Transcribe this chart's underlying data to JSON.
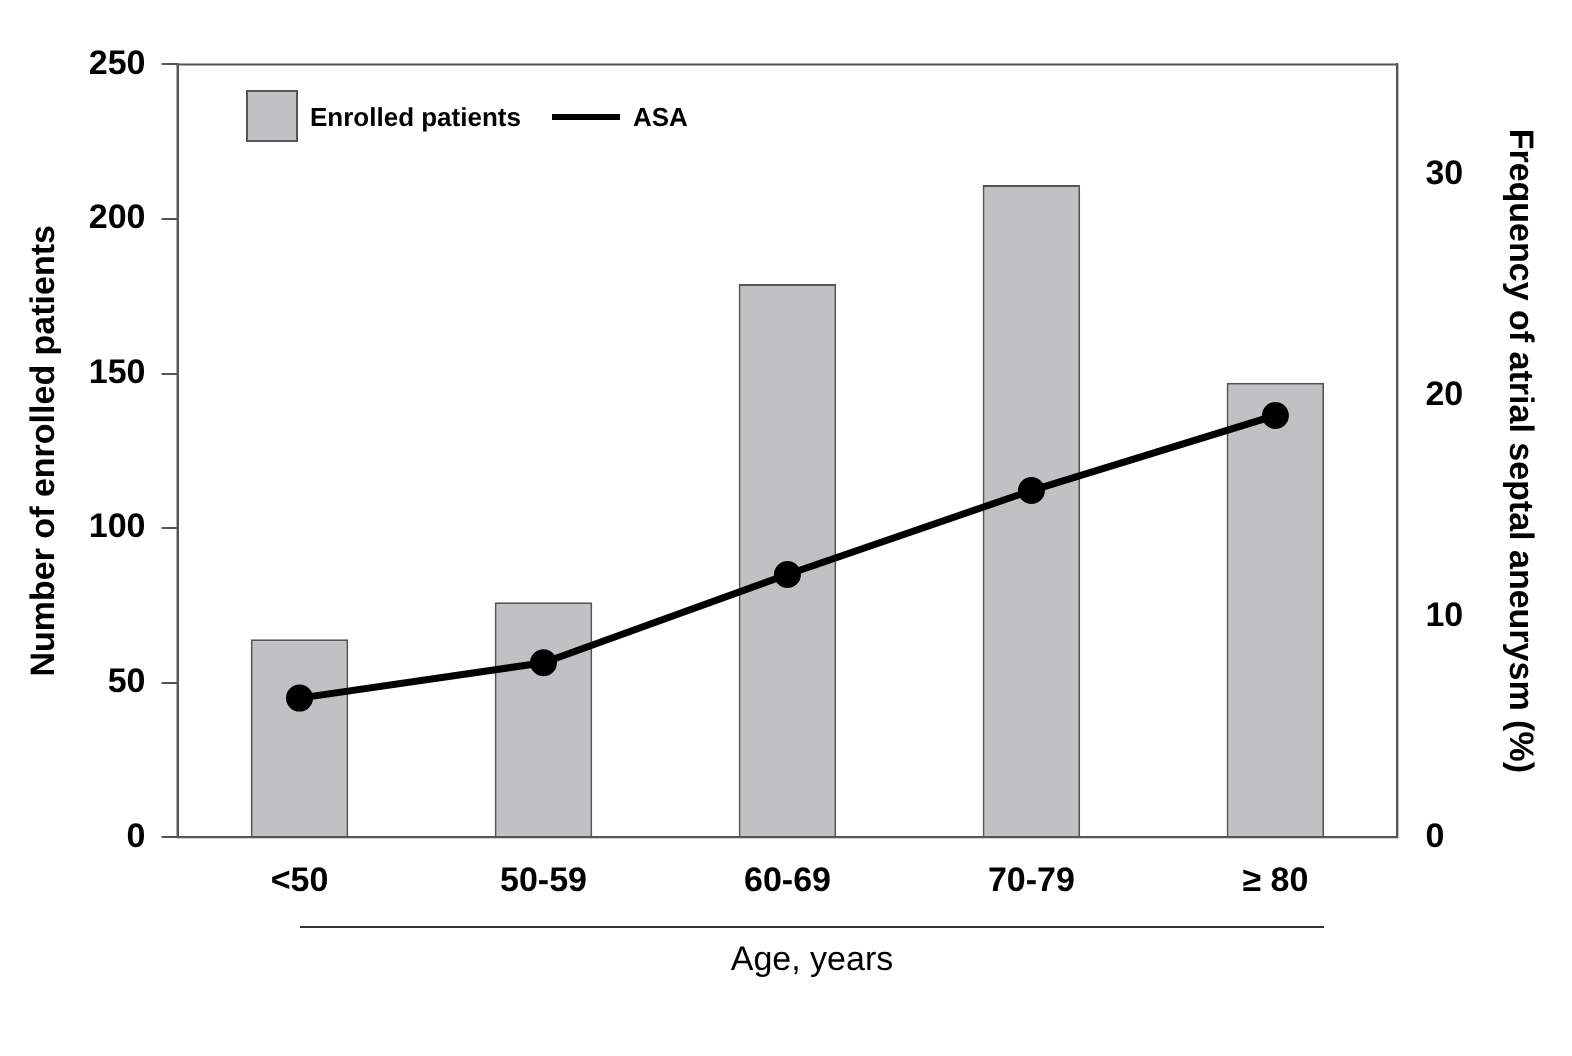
{
  "chart_data": {
    "type": "bar",
    "xlabel": "Age, years",
    "ylabel": "Number of enrolled patients",
    "y2label": "Frequency of atrial septal aneurysm (%)",
    "categories": [
      "<50",
      "50-59",
      "60-69",
      "70-79",
      "≥ 80"
    ],
    "series": [
      {
        "name": "Enrolled patients",
        "color": "#c0c1c3",
        "values": [
          64,
          76,
          179,
          211,
          147
        ]
      },
      {
        "name": "ASA",
        "type": "line",
        "axis": "y2",
        "color": "#000000",
        "values": [
          6.3,
          7.9,
          11.9,
          15.7,
          19.1
        ]
      }
    ],
    "ylim": [
      0,
      250
    ],
    "yticks": [
      0,
      50,
      100,
      150,
      200,
      250
    ],
    "y2lim": [
      0,
      35
    ],
    "y2ticks": [
      0,
      10,
      20,
      30
    ],
    "legend": "top left",
    "marker": "circle",
    "line_style": "solid",
    "grid": false
  }
}
